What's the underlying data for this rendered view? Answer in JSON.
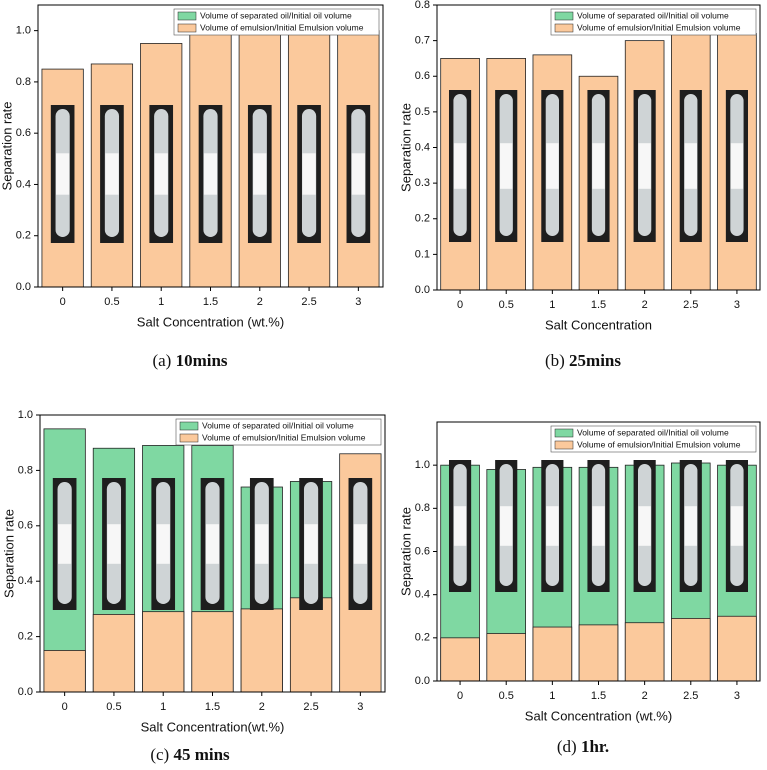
{
  "chart_data": [
    {
      "type": "bar",
      "caption_label": "(a)",
      "caption": "10mins",
      "y_label": "Separation rate",
      "x_label": "Salt Concentration (wt.%)",
      "categories": [
        "0",
        "0.5",
        "1",
        "1.5",
        "2",
        "2.5",
        "3"
      ],
      "series": [
        {
          "name": "Volume of separated oil/Initial oil volume",
          "color": "#7fd8a2",
          "values": [
            0,
            0,
            0,
            0,
            0,
            0,
            0
          ]
        },
        {
          "name": "Volume of emulsion/Initial Emulsion volume",
          "color": "#fbc99c",
          "values": [
            0.85,
            0.87,
            0.95,
            1.0,
            1.0,
            1.0,
            1.0
          ]
        }
      ],
      "ylim": [
        0,
        1.1
      ],
      "yticks": [
        {
          "value": 0,
          "label": "0.0"
        },
        0.2,
        0.4,
        0.6,
        0.8,
        {
          "value": 1,
          "label": "1.0"
        }
      ],
      "legend": "upper right"
    },
    {
      "type": "bar",
      "caption_label": "(b)",
      "caption": "25mins",
      "y_label": "Separation rate",
      "x_label": "Salt Concentration",
      "categories": [
        "0",
        "0.5",
        "1",
        "1.5",
        "2",
        "2.5",
        "3"
      ],
      "series": [
        {
          "name": "Volume of separated oil/Initial oil volume",
          "color": "#7fd8a2",
          "values": [
            0,
            0,
            0,
            0,
            0,
            0,
            0
          ]
        },
        {
          "name": "Volume of emulsion/Initial Emulsion volume",
          "color": "#fbc99c",
          "values": [
            0.65,
            0.65,
            0.66,
            0.6,
            0.7,
            0.72,
            0.72
          ]
        }
      ],
      "ylim": [
        0,
        0.8
      ],
      "yticks": [
        {
          "value": 0,
          "label": "0.0"
        },
        0.1,
        0.2,
        0.3,
        0.4,
        0.5,
        0.6,
        0.7,
        0.8
      ],
      "legend": "upper right"
    },
    {
      "type": "bar",
      "caption_label": "(c)",
      "caption": "45 mins",
      "y_label": "Separation rate",
      "x_label": "Salt Concentration(wt.%)",
      "categories": [
        "0",
        "0.5",
        "1",
        "1.5",
        "2",
        "2.5",
        "3"
      ],
      "series": [
        {
          "name": "Volume of separated oil/Initial oil volume",
          "color": "#7fd8a2",
          "values": [
            0.95,
            0.88,
            0.89,
            0.89,
            0.74,
            0.76,
            0
          ]
        },
        {
          "name": "Volume of emulsion/Initial Emulsion volume",
          "color": "#fbc99c",
          "values": [
            0.15,
            0.28,
            0.29,
            0.29,
            0.3,
            0.34,
            0.86
          ]
        }
      ],
      "ylim": [
        0,
        1
      ],
      "yticks": [
        {
          "value": 0,
          "label": "0.0"
        },
        0.2,
        0.4,
        0.6,
        0.8,
        {
          "value": 1,
          "label": "1.0"
        }
      ],
      "legend": "upper right"
    },
    {
      "type": "bar",
      "caption_label": "(d)",
      "caption": "1hr.",
      "y_label": "Separation rate",
      "x_label": "Salt Concentration (wt.%)",
      "categories": [
        "0",
        "0.5",
        "1",
        "1.5",
        "2",
        "2.5",
        "3"
      ],
      "series": [
        {
          "name": "Volume of separated oil/Initial oil volume",
          "color": "#7fd8a2",
          "values": [
            1.0,
            0.98,
            0.99,
            0.99,
            1.0,
            1.01,
            1.0
          ]
        },
        {
          "name": "Volume of emulsion/Initial Emulsion volume",
          "color": "#fbc99c",
          "values": [
            0.2,
            0.22,
            0.25,
            0.26,
            0.27,
            0.29,
            0.3
          ]
        }
      ],
      "ylim": [
        0,
        1.2
      ],
      "yticks": [
        {
          "value": 0,
          "label": "0.0"
        },
        0.2,
        0.4,
        0.6,
        0.8,
        {
          "value": 1,
          "label": "1.0"
        }
      ],
      "legend": "upper right"
    }
  ]
}
